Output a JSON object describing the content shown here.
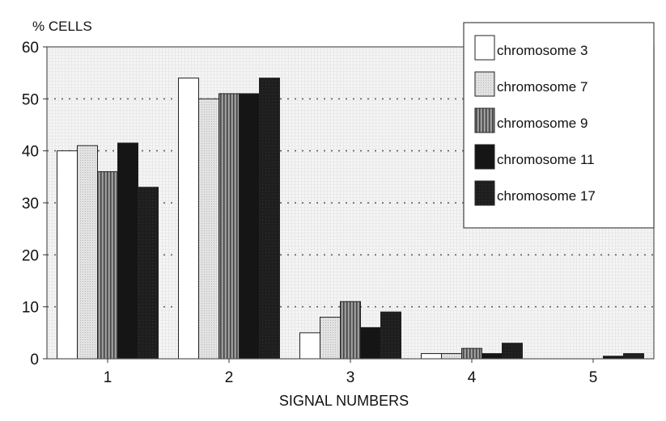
{
  "chart_data": {
    "type": "bar",
    "ylabel": "% CELLS",
    "xlabel": "SIGNAL NUMBERS",
    "ylim": [
      0,
      60
    ],
    "yticks": [
      0,
      10,
      20,
      30,
      40,
      50,
      60
    ],
    "grid": true,
    "legend_position": "top-right",
    "categories": [
      "1",
      "2",
      "3",
      "4",
      "5"
    ],
    "series": [
      {
        "name": "chromosome 3",
        "fill": "#ffffff",
        "values": [
          40,
          54,
          5,
          1,
          0
        ]
      },
      {
        "name": "chromosome 7",
        "fill": "#d8d8d8",
        "values": [
          41,
          50,
          8,
          1,
          0
        ]
      },
      {
        "name": "chromosome 9",
        "fill": "#777777",
        "values": [
          36,
          51,
          11,
          2,
          0
        ]
      },
      {
        "name": "chromosome 11",
        "fill": "#1a1a1a",
        "values": [
          41.5,
          51,
          6,
          1,
          0.5
        ]
      },
      {
        "name": "chromosome 17",
        "fill": "#222222",
        "values": [
          33,
          54,
          9,
          3,
          1
        ]
      }
    ]
  }
}
